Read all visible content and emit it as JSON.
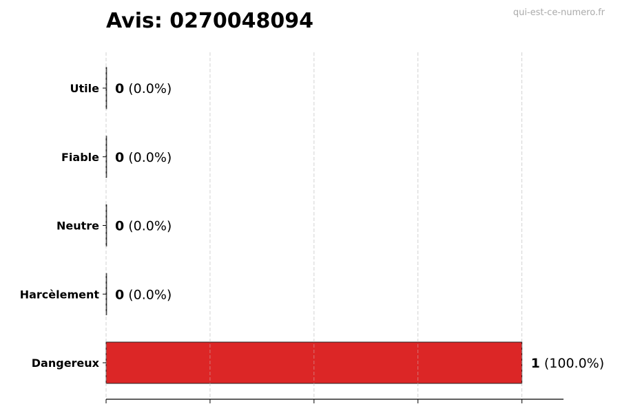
{
  "chart_data": {
    "type": "bar",
    "orientation": "horizontal",
    "title": "Avis: 0270048094",
    "watermark": "qui-est-ce-numero.fr",
    "categories": [
      "Utile",
      "Fiable",
      "Neutre",
      "Harcèlement",
      "Dangereux"
    ],
    "values": [
      0,
      0,
      0,
      0,
      1
    ],
    "value_labels": [
      {
        "count": "0",
        "percent": "(0.0%)"
      },
      {
        "count": "0",
        "percent": "(0.0%)"
      },
      {
        "count": "0",
        "percent": "(0.0%)"
      },
      {
        "count": "0",
        "percent": "(0.0%)"
      },
      {
        "count": "1",
        "percent": "(100.0%)"
      }
    ],
    "xlabel": "",
    "ylabel": "",
    "xlim": [
      0,
      1.1
    ],
    "xticks": [
      0,
      0.25,
      0.5,
      0.75,
      1.0
    ],
    "xtick_labels_shown": false,
    "grid": "x, dashed",
    "legend": "none",
    "colors": {
      "bar": "#dc2626",
      "edge": "#222222",
      "grid": "#cccccc"
    }
  }
}
